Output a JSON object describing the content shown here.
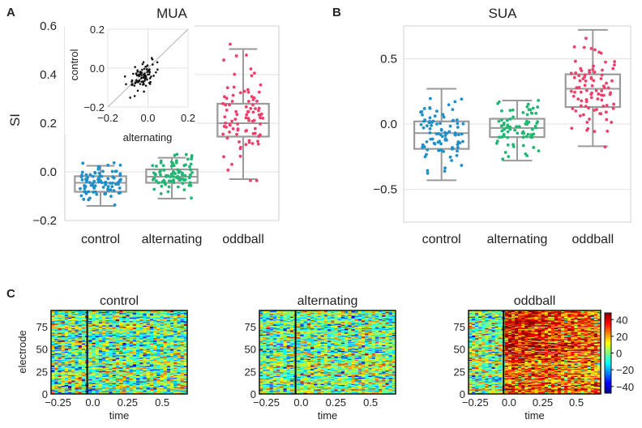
{
  "panel_labels": {
    "a": "A",
    "b": "B",
    "c": "C"
  },
  "chart_data": [
    {
      "id": "mua",
      "type": "box",
      "title": "MUA",
      "ylabel": "SI",
      "xlabel": "",
      "ylim": [
        -0.2,
        0.6
      ],
      "yticks": [
        -0.2,
        0.0,
        0.2,
        0.4,
        0.6
      ],
      "ytick_labels": [
        "−0.2",
        "0.0",
        "0.2",
        "0.4",
        "0.6"
      ],
      "categories": [
        "control",
        "alternating",
        "oddball"
      ],
      "boxes": [
        {
          "name": "control",
          "color": "#1f8fc8",
          "min": -0.14,
          "q1": -0.082,
          "median": -0.045,
          "q3": -0.018,
          "max": 0.025,
          "center": -0.048,
          "spread": 0.032,
          "n": 90
        },
        {
          "name": "alternating",
          "color": "#22b573",
          "min": -0.11,
          "q1": -0.045,
          "median": -0.02,
          "q3": 0.01,
          "max": 0.058,
          "center": -0.018,
          "spread": 0.035,
          "n": 90
        },
        {
          "name": "oddball",
          "color": "#ee3f6a",
          "min": -0.03,
          "q1": 0.145,
          "median": 0.2,
          "q3": 0.28,
          "max": 0.505,
          "center": 0.21,
          "spread": 0.1,
          "n": 90
        }
      ],
      "inset": {
        "type": "scatter",
        "xlabel": "alternating",
        "ylabel": "control",
        "xlim": [
          -0.2,
          0.2
        ],
        "ylim": [
          -0.2,
          0.2
        ],
        "xticks": [
          -0.2,
          0.0,
          0.2
        ],
        "yticks": [
          -0.2,
          0.0,
          0.2
        ],
        "xtick_labels": [
          "−0.2",
          "0.0",
          "0.2"
        ],
        "ytick_labels": [
          "−0.2",
          "0.0",
          "0.2"
        ],
        "color": "#111111",
        "n": 90,
        "center": [
          -0.02,
          -0.04
        ],
        "spread": [
          0.035,
          0.035
        ]
      }
    },
    {
      "id": "sua",
      "type": "box",
      "title": "SUA",
      "ylabel": "",
      "xlabel": "",
      "ylim": [
        -0.75,
        0.75
      ],
      "yticks": [
        -0.5,
        0.0,
        0.5
      ],
      "ytick_labels": [
        "−0.5",
        "0.0",
        "0.5"
      ],
      "categories": [
        "control",
        "alternating",
        "oddball"
      ],
      "boxes": [
        {
          "name": "control",
          "color": "#1f8fc8",
          "min": -0.43,
          "q1": -0.19,
          "median": -0.07,
          "q3": 0.02,
          "max": 0.27,
          "center": -0.08,
          "spread": 0.14,
          "n": 90
        },
        {
          "name": "alternating",
          "color": "#22b573",
          "min": -0.28,
          "q1": -0.1,
          "median": -0.03,
          "q3": 0.04,
          "max": 0.18,
          "center": -0.03,
          "spread": 0.1,
          "n": 75
        },
        {
          "name": "oddball",
          "color": "#ee3f6a",
          "min": -0.17,
          "q1": 0.13,
          "median": 0.27,
          "q3": 0.38,
          "max": 0.72,
          "center": 0.26,
          "spread": 0.18,
          "n": 90
        }
      ]
    },
    {
      "id": "heatmaps",
      "type": "heatmap",
      "xlabel": "time",
      "ylabel": "electrode",
      "xlim": [
        -0.3,
        0.68
      ],
      "ylim": [
        0,
        93
      ],
      "xticks": [
        -0.25,
        0.0,
        0.25,
        0.5
      ],
      "xtick_labels": [
        "−0.25",
        "0.0",
        "0.25",
        "0.5"
      ],
      "yticks": [
        0,
        25,
        50,
        75
      ],
      "ytick_labels": [
        "0",
        "25",
        "50",
        "75"
      ],
      "stimulus_onset": -0.04,
      "rows": 93,
      "colorbar": {
        "vmin": -48,
        "vmax": 48,
        "ticks": [
          40,
          20,
          0,
          -20,
          -40
        ],
        "tick_labels": [
          "40",
          "20",
          "0",
          "−20",
          "−40"
        ]
      },
      "panels": [
        {
          "title": "control",
          "bias_pre": 0,
          "bias_post": 0,
          "noise": 16
        },
        {
          "title": "alternating",
          "bias_pre": 0,
          "bias_post": 0,
          "noise": 15
        },
        {
          "title": "oddball",
          "bias_pre": 0,
          "bias_post": 40,
          "noise": 15
        }
      ]
    }
  ]
}
